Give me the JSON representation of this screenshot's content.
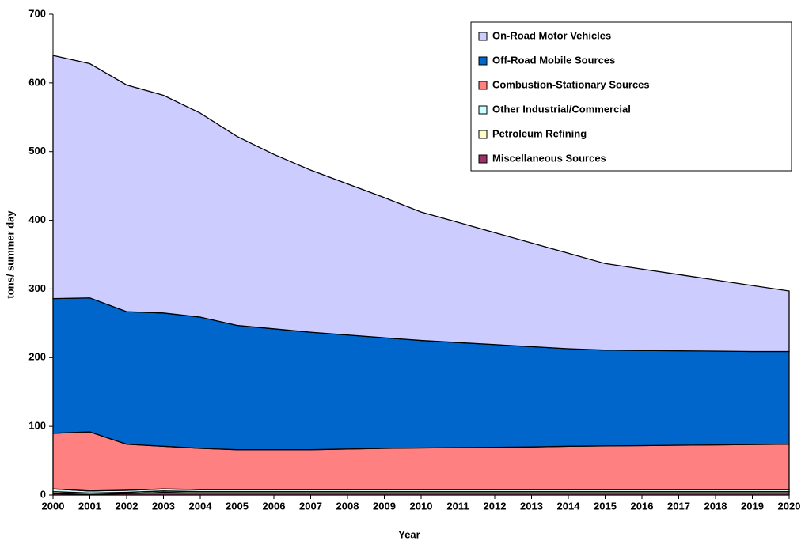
{
  "chart_data": {
    "type": "stacked_area",
    "x_label": "Year",
    "y_label": "tons/ summer day",
    "categories": [
      "2000",
      "2001",
      "2002",
      "2003",
      "2004",
      "2005",
      "2006",
      "2007",
      "2008",
      "2009",
      "2010",
      "2011",
      "2012",
      "2013",
      "2014",
      "2015",
      "2016",
      "2017",
      "2018",
      "2019",
      "2020"
    ],
    "series": [
      {
        "name": "On-Road Motor Vehicles",
        "color": "#ccccff",
        "values": [
          354,
          341,
          330,
          317,
          297,
          275,
          254,
          236,
          220,
          204,
          187,
          175,
          163,
          151,
          139,
          126,
          118.5,
          111,
          103.5,
          96,
          88
        ]
      },
      {
        "name": "Off-Road Mobile Sources",
        "color": "#0066cc",
        "values": [
          196,
          195,
          193,
          194,
          191,
          181,
          176,
          171,
          166,
          161,
          156.5,
          153,
          149.5,
          146,
          142,
          139.5,
          138.5,
          137.5,
          136.5,
          135.5,
          135
        ]
      },
      {
        "name": "Combustion-Stationary Sources",
        "color": "#ff8080",
        "values": [
          81,
          86,
          67,
          62,
          60,
          58,
          58,
          58,
          59,
          60,
          60.5,
          61,
          61.5,
          62,
          63,
          63.5,
          64,
          64.5,
          65,
          65.5,
          66
        ]
      },
      {
        "name": "Other Industrial/Commercial",
        "color": "#ccffff",
        "values": [
          4,
          3,
          3,
          3,
          3,
          3,
          3,
          3,
          3,
          3,
          3,
          3,
          3,
          3,
          3,
          3,
          3,
          3,
          3,
          3,
          3
        ]
      },
      {
        "name": "Petroleum Refining",
        "color": "#ffffcc",
        "values": [
          3,
          2,
          2,
          2,
          2,
          2,
          2,
          2,
          2,
          2,
          2,
          2,
          2,
          2,
          2,
          2,
          2,
          2,
          2,
          2,
          2
        ]
      },
      {
        "name": "Miscellaneous Sources",
        "color": "#993366",
        "values": [
          2,
          1,
          2,
          4,
          3,
          3,
          3,
          3,
          3,
          3,
          3,
          3,
          3,
          3,
          3,
          3,
          3,
          3,
          3,
          3,
          3
        ]
      }
    ],
    "ylim": [
      0,
      700
    ],
    "yticks": [
      0,
      100,
      200,
      300,
      400,
      500,
      600,
      700
    ],
    "legend": "upper right"
  }
}
